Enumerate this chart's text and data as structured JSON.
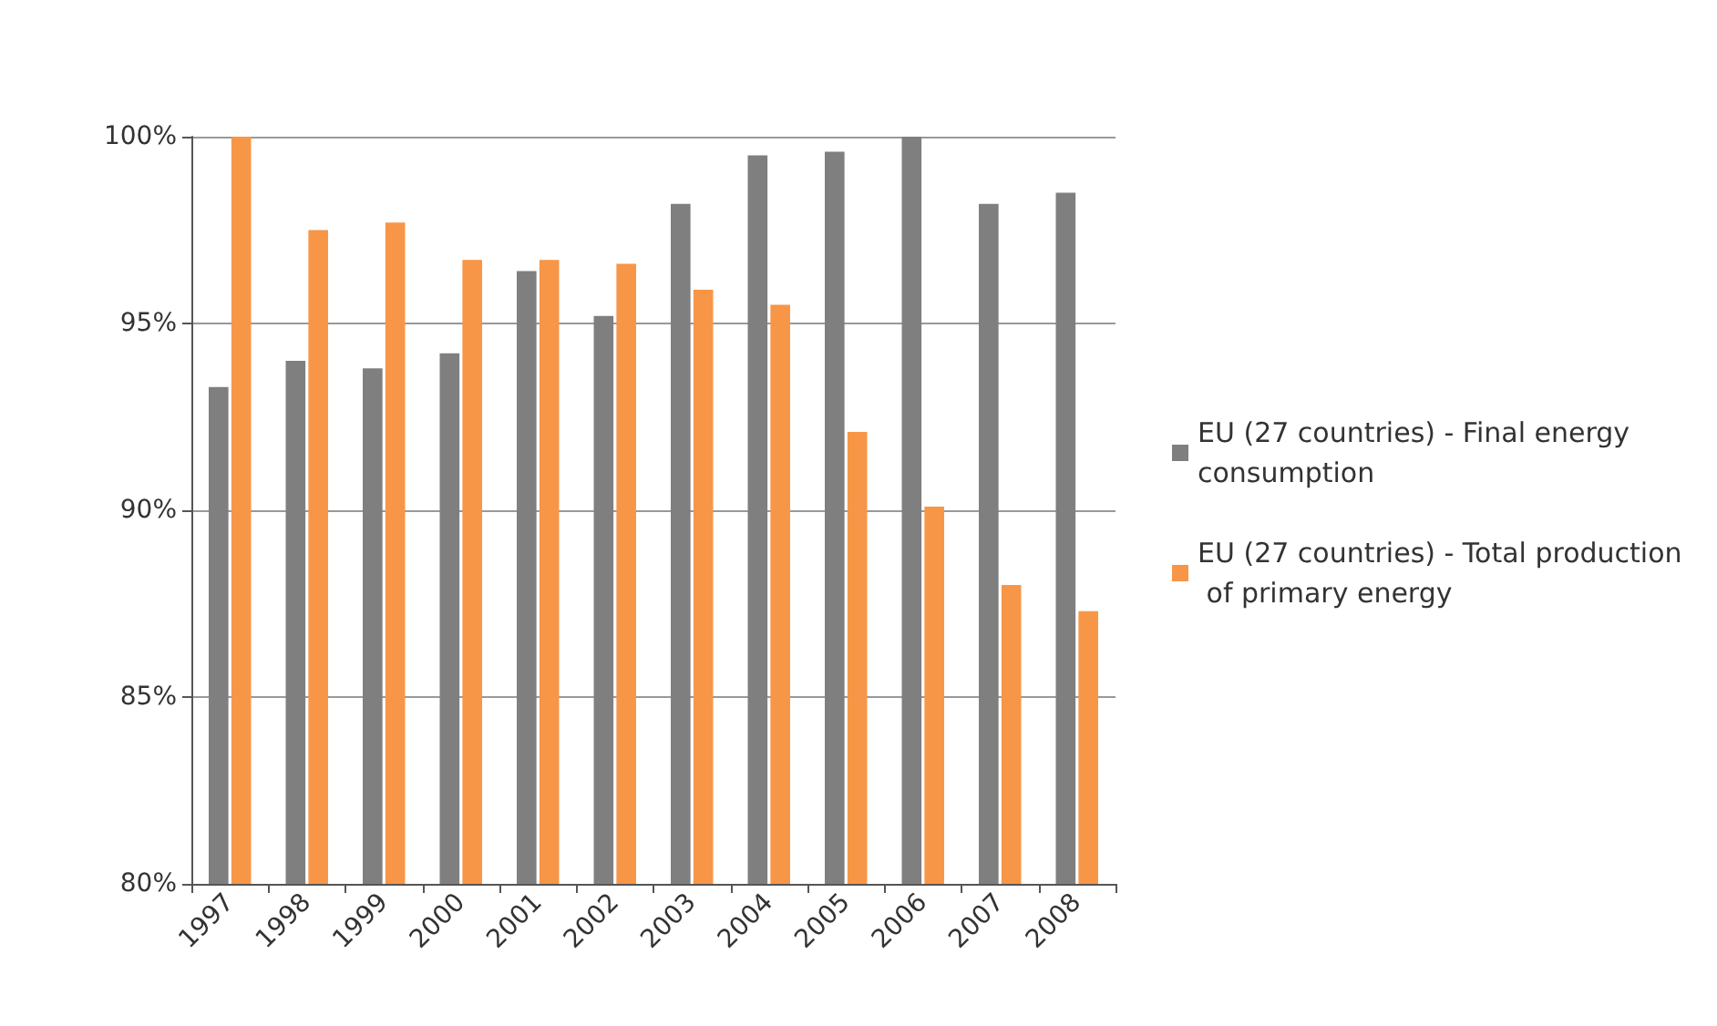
{
  "chart_data": {
    "type": "bar",
    "categories": [
      "1997",
      "1998",
      "1999",
      "2000",
      "2001",
      "2002",
      "2003",
      "2004",
      "2005",
      "2006",
      "2007",
      "2008"
    ],
    "series": [
      {
        "name": "EU (27 countries) - Final energy consumption",
        "color": "#7f7f7f",
        "values": [
          93.3,
          94.0,
          93.8,
          94.2,
          96.4,
          95.2,
          98.2,
          99.5,
          99.6,
          100,
          98.2,
          98.5
        ]
      },
      {
        "name": "EU (27 countries) - Total production of primary energy",
        "color": "#f79646",
        "values": [
          100,
          97.5,
          97.7,
          96.7,
          96.7,
          96.6,
          95.9,
          95.5,
          92.1,
          90.1,
          88.0,
          87.3
        ]
      }
    ],
    "ylim": [
      80,
      100
    ],
    "yticks": [
      {
        "value": 80,
        "label": "80%"
      },
      {
        "value": 85,
        "label": "85%"
      },
      {
        "value": 90,
        "label": "90%"
      },
      {
        "value": 95,
        "label": "95%"
      },
      {
        "value": 100,
        "label": "100%"
      }
    ],
    "grid": "y",
    "legend": "right"
  }
}
